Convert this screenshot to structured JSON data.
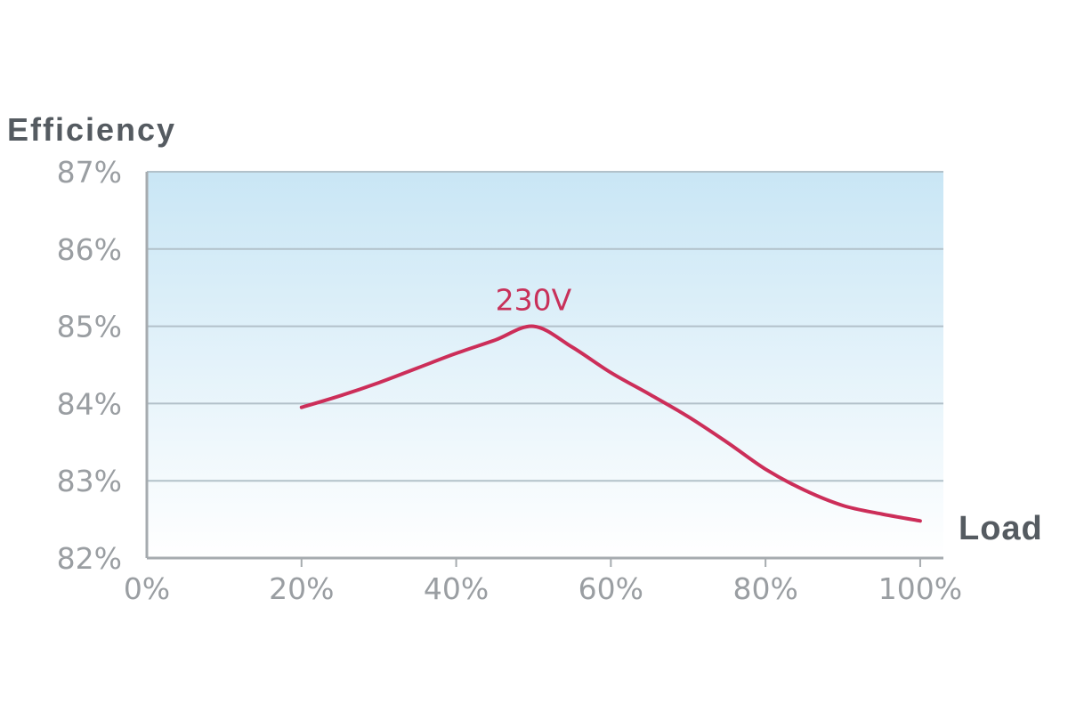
{
  "chart_data": {
    "type": "line",
    "ylabel": "Efficiency",
    "xlabel": "Load",
    "x_ticks": [
      "0%",
      "20%",
      "40%",
      "60%",
      "80%",
      "100%"
    ],
    "x_tick_values": [
      0,
      20,
      40,
      60,
      80,
      100
    ],
    "y_ticks": [
      "82%",
      "83%",
      "84%",
      "85%",
      "86%",
      "87%"
    ],
    "y_tick_values": [
      82,
      83,
      84,
      85,
      86,
      87
    ],
    "xlim": [
      0,
      103
    ],
    "ylim": [
      82,
      87
    ],
    "grid": true,
    "series": [
      {
        "name": "230V",
        "color": "#cc2e59",
        "x": [
          20,
          25,
          30,
          35,
          40,
          45,
          50,
          55,
          60,
          65,
          70,
          75,
          80,
          85,
          90,
          95,
          100
        ],
        "y": [
          83.95,
          84.1,
          84.27,
          84.46,
          84.65,
          84.82,
          85.0,
          84.73,
          84.4,
          84.12,
          83.83,
          83.5,
          83.15,
          82.88,
          82.68,
          82.57,
          82.48
        ]
      }
    ],
    "annotations": [
      {
        "text": "230V",
        "x": 50,
        "y": 85,
        "color": "#cc2e59"
      }
    ],
    "colors": {
      "background_top": "#c9e6f5",
      "background_bottom": "#ffffff",
      "grid": "#b2c1ca",
      "axis": "#a6abaf"
    }
  }
}
